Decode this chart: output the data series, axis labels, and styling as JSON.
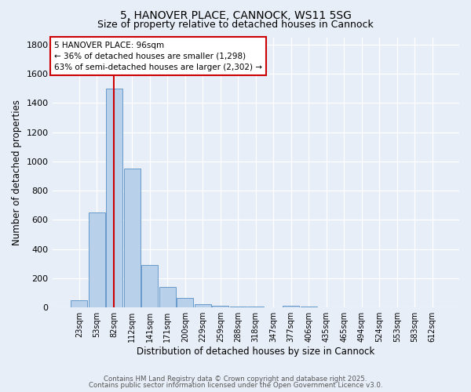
{
  "title1": "5, HANOVER PLACE, CANNOCK, WS11 5SG",
  "title2": "Size of property relative to detached houses in Cannock",
  "xlabel": "Distribution of detached houses by size in Cannock",
  "ylabel": "Number of detached properties",
  "bar_labels": [
    "23sqm",
    "53sqm",
    "82sqm",
    "112sqm",
    "141sqm",
    "171sqm",
    "200sqm",
    "229sqm",
    "259sqm",
    "288sqm",
    "318sqm",
    "347sqm",
    "377sqm",
    "406sqm",
    "435sqm",
    "465sqm",
    "494sqm",
    "524sqm",
    "553sqm",
    "583sqm",
    "612sqm"
  ],
  "bar_values": [
    50,
    650,
    1500,
    950,
    290,
    140,
    65,
    20,
    10,
    5,
    5,
    3,
    10,
    5,
    0,
    0,
    0,
    0,
    0,
    0,
    0
  ],
  "bar_color": "#b8d0ea",
  "bar_edgecolor": "#6699cc",
  "bar_linewidth": 0.7,
  "bg_color": "#e8eef8",
  "grid_color": "#d0d8e8",
  "ylim": [
    0,
    1850
  ],
  "yticks": [
    0,
    200,
    400,
    600,
    800,
    1000,
    1200,
    1400,
    1600,
    1800
  ],
  "annotation_text": "5 HANOVER PLACE: 96sqm\n← 36% of detached houses are smaller (1,298)\n63% of semi-detached houses are larger (2,302) →",
  "annotation_box_color": "#ffffff",
  "annotation_box_edgecolor": "#cc0000",
  "footer1": "Contains HM Land Registry data © Crown copyright and database right 2025.",
  "footer2": "Contains public sector information licensed under the Open Government Licence v3.0."
}
